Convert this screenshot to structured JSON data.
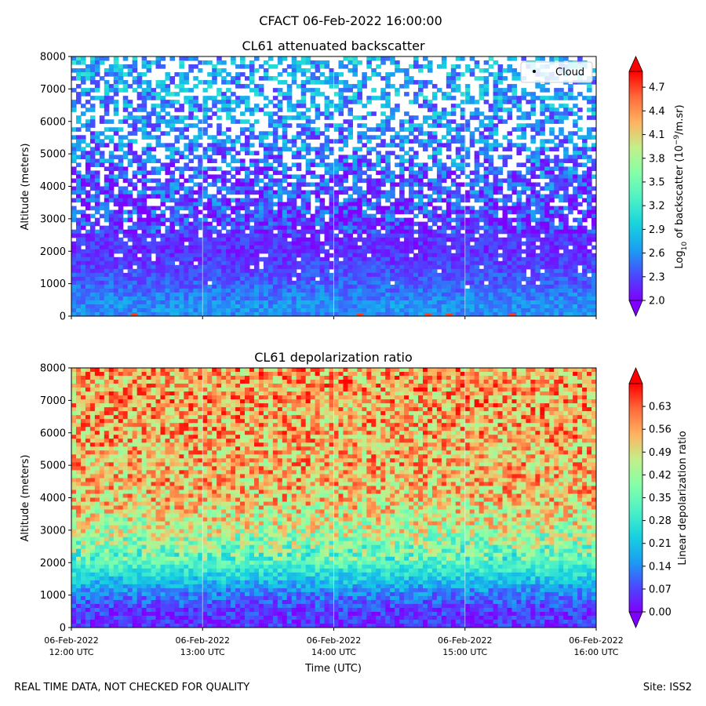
{
  "figure": {
    "suptitle": "CFACT 06-Feb-2022 16:00:00",
    "footer_left": "REAL TIME DATA, NOT CHECKED FOR QUALITY",
    "footer_right": "Site: ISS2"
  },
  "chart_data": [
    {
      "type": "heatmap",
      "title": "CL61 attenuated backscatter",
      "ylabel": "Altitude (meters)",
      "xlabel": "",
      "ylim": [
        0,
        8000
      ],
      "yticks": [
        "0",
        "1000",
        "2000",
        "3000",
        "4000",
        "5000",
        "6000",
        "7000",
        "8000"
      ],
      "xticks": [],
      "colorbar": {
        "label_prefix": "Log",
        "label_sub": "10",
        "label_mid": " of backscatter (10",
        "label_sup": "−9",
        "label_suffix": "/m.sr)",
        "range": [
          2.0,
          4.9
        ],
        "ticks": [
          "2.0",
          "2.3",
          "2.6",
          "2.9",
          "3.2",
          "3.5",
          "3.8",
          "4.1",
          "4.4",
          "4.7"
        ],
        "colors": [
          "#7f00ff",
          "#4a4afe",
          "#1a9ff2",
          "#18d3de",
          "#4ef1c6",
          "#84ffa8",
          "#c2f08a",
          "#ffb360",
          "#ff6a3a",
          "#ff0000"
        ]
      },
      "legend": {
        "label": "Cloud",
        "position": "top-right"
      },
      "profile_description_values": {
        "altitude_m": [
          0,
          300,
          700,
          1200,
          2000,
          3000,
          4000,
          5000,
          6000,
          7000,
          8000
        ],
        "typical_log10_backscatter": [
          2.6,
          2.6,
          2.5,
          2.35,
          2.2,
          2.25,
          2.35,
          2.5,
          2.6,
          2.7,
          2.75
        ],
        "gap_fraction": [
          0,
          0,
          0,
          0.02,
          0.05,
          0.15,
          0.25,
          0.38,
          0.45,
          0.5,
          0.55
        ]
      }
    },
    {
      "type": "heatmap",
      "title": "CL61 depolarization ratio",
      "ylabel": "Altitude (meters)",
      "xlabel": "Time (UTC)",
      "ylim": [
        0,
        8000
      ],
      "yticks": [
        "0",
        "1000",
        "2000",
        "3000",
        "4000",
        "5000",
        "6000",
        "7000",
        "8000"
      ],
      "xticks": [
        {
          "date": "06-Feb-2022",
          "time": "12:00 UTC"
        },
        {
          "date": "06-Feb-2022",
          "time": "13:00 UTC"
        },
        {
          "date": "06-Feb-2022",
          "time": "14:00 UTC"
        },
        {
          "date": "06-Feb-2022",
          "time": "15:00 UTC"
        },
        {
          "date": "06-Feb-2022",
          "time": "16:00 UTC"
        }
      ],
      "colorbar": {
        "label": "Linear depolarization ratio",
        "range": [
          0.0,
          0.7
        ],
        "ticks": [
          "0.00",
          "0.07",
          "0.14",
          "0.21",
          "0.28",
          "0.35",
          "0.42",
          "0.49",
          "0.56",
          "0.63"
        ],
        "colors": [
          "#7f00ff",
          "#4a4afe",
          "#1a9ff2",
          "#18d3de",
          "#4ef1c6",
          "#84ffa8",
          "#c2f08a",
          "#ffb360",
          "#ff6a3a",
          "#ff0000"
        ]
      },
      "profile_description_values": {
        "altitude_m": [
          0,
          500,
          1000,
          1500,
          2000,
          3000,
          4000,
          5000,
          6000,
          7000,
          8000
        ],
        "typical_ratio": [
          0.05,
          0.06,
          0.12,
          0.22,
          0.33,
          0.45,
          0.52,
          0.54,
          0.55,
          0.56,
          0.56
        ]
      }
    }
  ]
}
